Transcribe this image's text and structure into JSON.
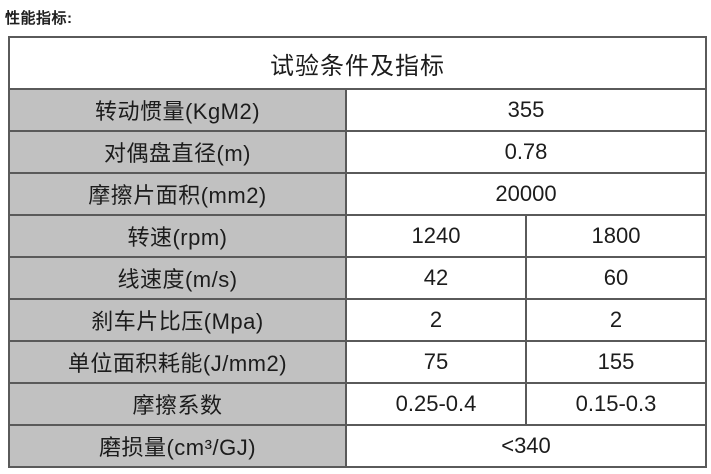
{
  "page": {
    "title": "性能指标:"
  },
  "colors": {
    "label_cell_bg": "#c1c1c1",
    "cell_bg": "#ffffff",
    "border": "#5a5a5a",
    "text": "#1c1c1c"
  },
  "table": {
    "header": "试验条件及指标",
    "rows": [
      {
        "label": "转动惯量(KgM2)",
        "values": [
          "355"
        ]
      },
      {
        "label": "对偶盘直径(m)",
        "values": [
          "0.78"
        ]
      },
      {
        "label": "摩擦片面积(mm2)",
        "values": [
          "20000"
        ]
      },
      {
        "label": "转速(rpm)",
        "values": [
          "1240",
          "1800"
        ]
      },
      {
        "label": "线速度(m/s)",
        "values": [
          "42",
          "60"
        ]
      },
      {
        "label": "刹车片比压(Mpa)",
        "values": [
          "2",
          "2"
        ]
      },
      {
        "label": "单位面积耗能(J/mm2)",
        "values": [
          "75",
          "155"
        ]
      },
      {
        "label": "摩擦系数",
        "values": [
          "0.25-0.4",
          "0.15-0.3"
        ]
      },
      {
        "label": "磨损量(cm³/GJ)",
        "values": [
          "<340"
        ]
      }
    ]
  }
}
